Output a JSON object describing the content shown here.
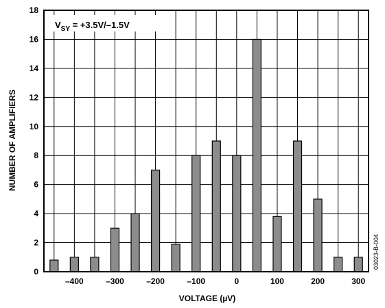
{
  "chart_data": {
    "type": "bar",
    "xlabel": "VOLTAGE (µV)",
    "ylabel": "NUMBER OF AMPLIFIERS",
    "annotation": {
      "prefix": "V",
      "subscript": "SY",
      "suffix": " = +3.5V/–1.5V"
    },
    "figure_id": "03023-B-004",
    "xlim": [
      -475,
      325
    ],
    "ylim": [
      0,
      18
    ],
    "x_ticks": [
      -400,
      -300,
      -200,
      -100,
      0,
      100,
      200,
      300
    ],
    "x_tick_labels": [
      "–400",
      "–300",
      "–200",
      "–100",
      "0",
      "100",
      "200",
      "300"
    ],
    "y_ticks": [
      0,
      2,
      4,
      6,
      8,
      10,
      12,
      14,
      16,
      18
    ],
    "y_tick_labels": [
      "0",
      "2",
      "4",
      "6",
      "8",
      "10",
      "12",
      "14",
      "16",
      "18"
    ],
    "x": [
      -450,
      -400,
      -350,
      -300,
      -250,
      -200,
      -150,
      -100,
      -50,
      0,
      50,
      100,
      150,
      200,
      250,
      300
    ],
    "values": [
      0.8,
      1,
      1,
      3,
      4,
      7,
      1.9,
      8,
      9,
      8,
      16,
      3.8,
      9,
      5,
      1,
      1
    ],
    "grid": true,
    "bar_color": "#8c8c8c",
    "bar_edge_color": "#000000"
  }
}
